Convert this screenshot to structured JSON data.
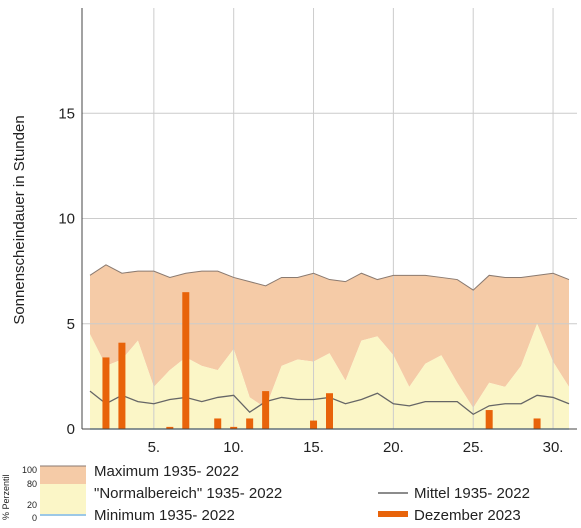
{
  "chart_data": {
    "type": "area",
    "ylabel": "Sonnenscheindauer in Stunden",
    "xlabel": "",
    "xlim": [
      0.5,
      31.5
    ],
    "ylim": [
      0,
      20
    ],
    "x_ticks": [
      5,
      10,
      15,
      20,
      25,
      30
    ],
    "x_tick_labels": [
      "5.",
      "10.",
      "15.",
      "20.",
      "25.",
      "30."
    ],
    "y_ticks": [
      0,
      5,
      10,
      15
    ],
    "y_tick_labels": [
      "0",
      "5",
      "10",
      "15"
    ],
    "grid": true,
    "legend_position": "bottom",
    "days": [
      1,
      2,
      3,
      4,
      5,
      6,
      7,
      8,
      9,
      10,
      11,
      12,
      13,
      14,
      15,
      16,
      17,
      18,
      19,
      20,
      21,
      22,
      23,
      24,
      25,
      26,
      27,
      28,
      29,
      30,
      31
    ],
    "series": [
      {
        "name": "Maximum 1935- 2022",
        "kind": "band-upper",
        "color": "#f5cba7",
        "values": [
          7.3,
          7.8,
          7.4,
          7.5,
          7.5,
          7.2,
          7.4,
          7.5,
          7.5,
          7.2,
          7.0,
          6.8,
          7.2,
          7.2,
          7.4,
          7.1,
          7.0,
          7.4,
          7.1,
          7.3,
          7.3,
          7.3,
          7.2,
          7.1,
          6.6,
          7.3,
          7.2,
          7.2,
          7.3,
          7.4,
          7.1
        ]
      },
      {
        "name": "\"Normalbereich\" 1935- 2022",
        "kind": "band-normal",
        "color": "#fbf6c7",
        "values": [
          4.5,
          3.0,
          3.3,
          4.2,
          2.0,
          2.8,
          3.4,
          3.0,
          2.8,
          3.8,
          1.5,
          1.0,
          3.0,
          3.3,
          3.2,
          3.6,
          2.3,
          4.2,
          4.4,
          3.5,
          2.0,
          3.1,
          3.5,
          2.2,
          1.0,
          2.2,
          2.0,
          3.0,
          5.0,
          3.2,
          2.0
        ]
      },
      {
        "name": "Minimum 1935- 2022",
        "kind": "band-lower",
        "color": "#9cc8e6",
        "values": [
          0,
          0,
          0,
          0,
          0,
          0,
          0,
          0,
          0,
          0,
          0,
          0,
          0,
          0,
          0,
          0,
          0,
          0,
          0,
          0,
          0,
          0,
          0,
          0,
          0,
          0,
          0,
          0,
          0,
          0,
          0
        ]
      },
      {
        "name": "Mittel 1935- 2022",
        "kind": "line",
        "color": "#666666",
        "values": [
          1.8,
          1.2,
          1.6,
          1.3,
          1.2,
          1.4,
          1.5,
          1.3,
          1.5,
          1.6,
          0.8,
          1.3,
          1.5,
          1.4,
          1.4,
          1.5,
          1.2,
          1.4,
          1.7,
          1.2,
          1.1,
          1.3,
          1.3,
          1.3,
          0.7,
          1.1,
          1.2,
          1.2,
          1.6,
          1.5,
          1.2
        ]
      },
      {
        "name": "Dezember 2023",
        "kind": "bar",
        "color": "#e8630a",
        "values": [
          0.0,
          3.4,
          4.1,
          0.0,
          0.0,
          0.1,
          6.5,
          0.0,
          0.5,
          0.1,
          0.5,
          1.8,
          0.0,
          0.0,
          0.4,
          1.7,
          0.0,
          0.0,
          0.0,
          0.0,
          0.0,
          0.0,
          0.0,
          0.0,
          0.0,
          0.9,
          0.0,
          0.0,
          0.5,
          0.0,
          0.0
        ]
      }
    ],
    "percentile_scale": {
      "title": "% Perzentil",
      "ticks": [
        "100",
        "80",
        "20",
        "0"
      ]
    }
  }
}
